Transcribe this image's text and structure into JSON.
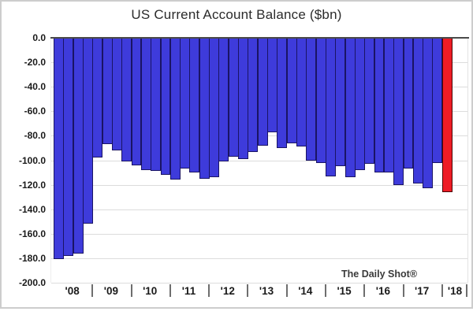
{
  "title": "US Current Account Balance ($bn)",
  "watermark": "The Daily Shot®",
  "chart_data": {
    "type": "bar",
    "title": "US Current Account Balance ($bn)",
    "xlabel": "",
    "ylabel": "",
    "unit": "$bn",
    "ylim": [
      -200,
      0
    ],
    "y_tick_step": 20,
    "y_tick_labels": [
      "0.0",
      "-20.0",
      "-40.0",
      "-60.0",
      "-80.0",
      "-100.0",
      "-120.0",
      "-140.0",
      "-160.0",
      "-180.0",
      "-200.0"
    ],
    "x_year_labels": [
      "'08",
      "'09",
      "'10",
      "'11",
      "'12",
      "'13",
      "'14",
      "'15",
      "'16",
      "'17",
      "'18"
    ],
    "quarters_per_year": 4,
    "grid": true,
    "legend": null,
    "annotation": "The Daily Shot®",
    "colors": {
      "bar": "#3E3BDB",
      "bar_border": "#1A1464",
      "highlight": "#EE1C25",
      "highlight_border": "#4A0505",
      "zero_line": "#4A4A4A"
    },
    "highlighted_point_index": 40,
    "series": [
      {
        "name": "US Current Account Balance",
        "points": [
          {
            "period": "2008 Q1",
            "value": -181
          },
          {
            "period": "2008 Q2",
            "value": -178
          },
          {
            "period": "2008 Q3",
            "value": -176
          },
          {
            "period": "2008 Q4",
            "value": -152
          },
          {
            "period": "2009 Q1",
            "value": -98
          },
          {
            "period": "2009 Q2",
            "value": -87
          },
          {
            "period": "2009 Q3",
            "value": -92
          },
          {
            "period": "2009 Q4",
            "value": -101
          },
          {
            "period": "2010 Q1",
            "value": -104
          },
          {
            "period": "2010 Q2",
            "value": -108
          },
          {
            "period": "2010 Q3",
            "value": -109
          },
          {
            "period": "2010 Q4",
            "value": -112
          },
          {
            "period": "2011 Q1",
            "value": -116
          },
          {
            "period": "2011 Q2",
            "value": -107
          },
          {
            "period": "2011 Q3",
            "value": -110
          },
          {
            "period": "2011 Q4",
            "value": -115
          },
          {
            "period": "2012 Q1",
            "value": -114
          },
          {
            "period": "2012 Q2",
            "value": -101
          },
          {
            "period": "2012 Q3",
            "value": -97
          },
          {
            "period": "2012 Q4",
            "value": -99
          },
          {
            "period": "2013 Q1",
            "value": -93
          },
          {
            "period": "2013 Q2",
            "value": -88
          },
          {
            "period": "2013 Q3",
            "value": -77
          },
          {
            "period": "2013 Q4",
            "value": -90
          },
          {
            "period": "2014 Q1",
            "value": -86
          },
          {
            "period": "2014 Q2",
            "value": -89
          },
          {
            "period": "2014 Q3",
            "value": -100
          },
          {
            "period": "2014 Q4",
            "value": -102
          },
          {
            "period": "2015 Q1",
            "value": -113
          },
          {
            "period": "2015 Q2",
            "value": -105
          },
          {
            "period": "2015 Q3",
            "value": -114
          },
          {
            "period": "2015 Q4",
            "value": -108
          },
          {
            "period": "2016 Q1",
            "value": -103
          },
          {
            "period": "2016 Q2",
            "value": -110
          },
          {
            "period": "2016 Q3",
            "value": -110
          },
          {
            "period": "2016 Q4",
            "value": -120
          },
          {
            "period": "2017 Q1",
            "value": -107
          },
          {
            "period": "2017 Q2",
            "value": -119
          },
          {
            "period": "2017 Q3",
            "value": -123
          },
          {
            "period": "2017 Q4",
            "value": -102
          },
          {
            "period": "2018 Q1",
            "value": -126
          }
        ]
      }
    ]
  }
}
